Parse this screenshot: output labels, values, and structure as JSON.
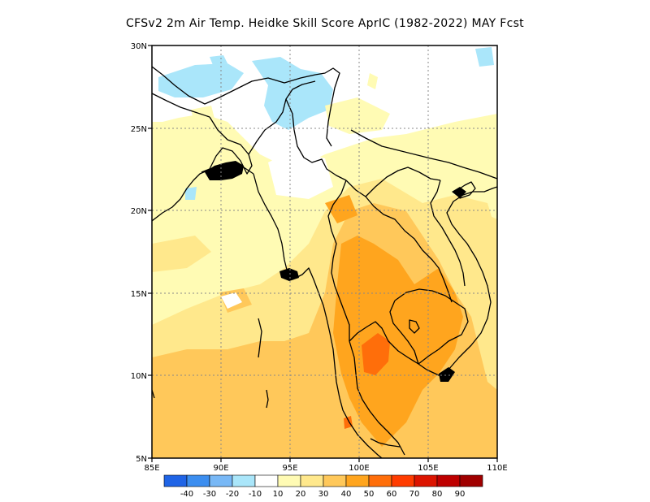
{
  "title": "CFSv2  2m Air Temp. Heidke Skill Score AprIC (1982-2022) MAY Fcst",
  "map": {
    "lon_range": [
      85,
      110
    ],
    "lat_range": [
      5,
      30
    ],
    "lon_ticks": [
      "85E",
      "90E",
      "95E",
      "100E",
      "105E",
      "110E"
    ],
    "lat_ticks": [
      "5N",
      "10N",
      "15N",
      "20N",
      "25N",
      "30N"
    ],
    "grid": "dotted"
  },
  "colorbar": {
    "labels": [
      "-40",
      "-30",
      "-20",
      "-10",
      "10",
      "20",
      "30",
      "40",
      "50",
      "60",
      "70",
      "80",
      "90"
    ],
    "colors": [
      "#1f64e6",
      "#3c8ef0",
      "#78b8f6",
      "#aae6fa",
      "#ffffff",
      "#fffbb4",
      "#ffe88c",
      "#ffc85a",
      "#ffa51e",
      "#ff6e0a",
      "#ff3c00",
      "#dc1400",
      "#be0000",
      "#a00000"
    ]
  }
}
